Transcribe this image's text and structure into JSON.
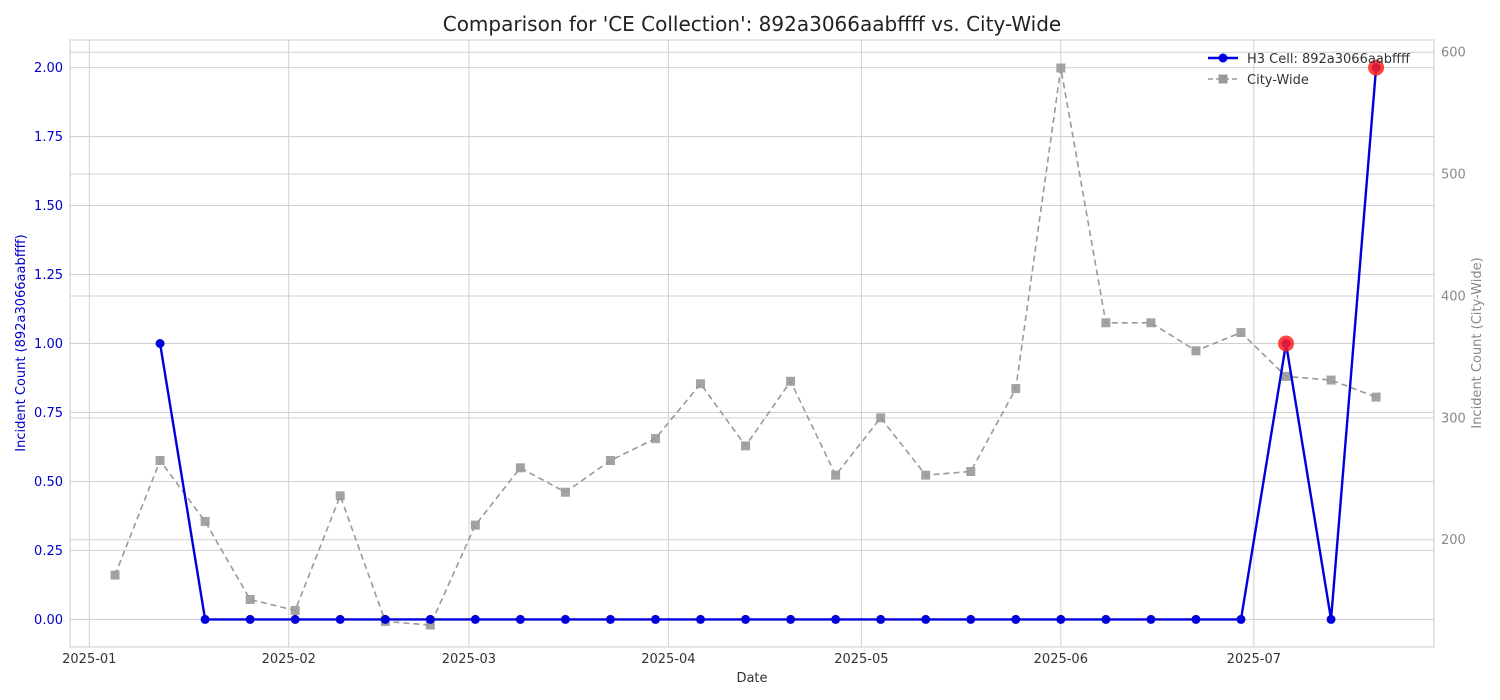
{
  "chart_data": {
    "type": "line",
    "title": "Comparison for 'CE Collection': 892a3066aabffff vs. City-Wide",
    "xlabel": "Date",
    "ylabel_left": "Incident Count (892a3066aabffff)",
    "ylabel_right": "Incident Count (City-Wide)",
    "ylim_left": [
      -0.1,
      2.1
    ],
    "ylim_right": [
      112,
      610
    ],
    "x_range": [
      "2024-12-29",
      "2025-07-29"
    ],
    "x_ticks": [
      "2025-01-01",
      "2025-02-01",
      "2025-03-01",
      "2025-04-01",
      "2025-05-01",
      "2025-06-01",
      "2025-07-01"
    ],
    "x_tick_labels": [
      "2025-01",
      "2025-02",
      "2025-03",
      "2025-04",
      "2025-05",
      "2025-06",
      "2025-07"
    ],
    "y_ticks_left": [
      "0.00",
      "0.25",
      "0.50",
      "0.75",
      "1.00",
      "1.25",
      "1.50",
      "1.75",
      "2.00"
    ],
    "y_ticks_right": [
      "200",
      "300",
      "400",
      "500",
      "600"
    ],
    "grid": true,
    "legend_position": "top-right",
    "series": [
      {
        "name": "H3 Cell: 892a3066aabffff",
        "axis": "left",
        "color": "#0000dd",
        "marker": "circle",
        "line_style": "solid",
        "x": [
          "2025-01-12",
          "2025-01-19",
          "2025-01-26",
          "2025-02-02",
          "2025-02-09",
          "2025-02-16",
          "2025-02-23",
          "2025-03-02",
          "2025-03-09",
          "2025-03-16",
          "2025-03-23",
          "2025-03-30",
          "2025-04-06",
          "2025-04-13",
          "2025-04-20",
          "2025-04-27",
          "2025-05-04",
          "2025-05-11",
          "2025-05-18",
          "2025-05-25",
          "2025-06-01",
          "2025-06-08",
          "2025-06-15",
          "2025-06-22",
          "2025-06-29",
          "2025-07-06",
          "2025-07-13",
          "2025-07-20"
        ],
        "values": [
          1,
          0,
          0,
          0,
          0,
          0,
          0,
          0,
          0,
          0,
          0,
          0,
          0,
          0,
          0,
          0,
          0,
          0,
          0,
          0,
          0,
          0,
          0,
          0,
          0,
          1,
          0,
          2
        ]
      },
      {
        "name": "City-Wide",
        "axis": "right",
        "color": "#999999",
        "marker": "square",
        "line_style": "dashed",
        "x": [
          "2025-01-05",
          "2025-01-12",
          "2025-01-19",
          "2025-01-26",
          "2025-02-02",
          "2025-02-09",
          "2025-02-16",
          "2025-02-23",
          "2025-03-02",
          "2025-03-09",
          "2025-03-16",
          "2025-03-23",
          "2025-03-30",
          "2025-04-06",
          "2025-04-13",
          "2025-04-20",
          "2025-04-27",
          "2025-05-04",
          "2025-05-11",
          "2025-05-18",
          "2025-05-25",
          "2025-06-01",
          "2025-06-08",
          "2025-06-15",
          "2025-06-22",
          "2025-06-29",
          "2025-07-06",
          "2025-07-13",
          "2025-07-20"
        ],
        "values": [
          171,
          265,
          215,
          151,
          142,
          236,
          133,
          130,
          212,
          259,
          239,
          265,
          283,
          328,
          277,
          330,
          253,
          300,
          253,
          256,
          324,
          587,
          378,
          378,
          355,
          370,
          334,
          331,
          317
        ]
      }
    ],
    "highlights": {
      "series": "H3 Cell: 892a3066aabffff",
      "color": "#ff2020",
      "x": [
        "2025-07-06",
        "2025-07-20"
      ],
      "values": [
        1,
        2
      ]
    }
  }
}
